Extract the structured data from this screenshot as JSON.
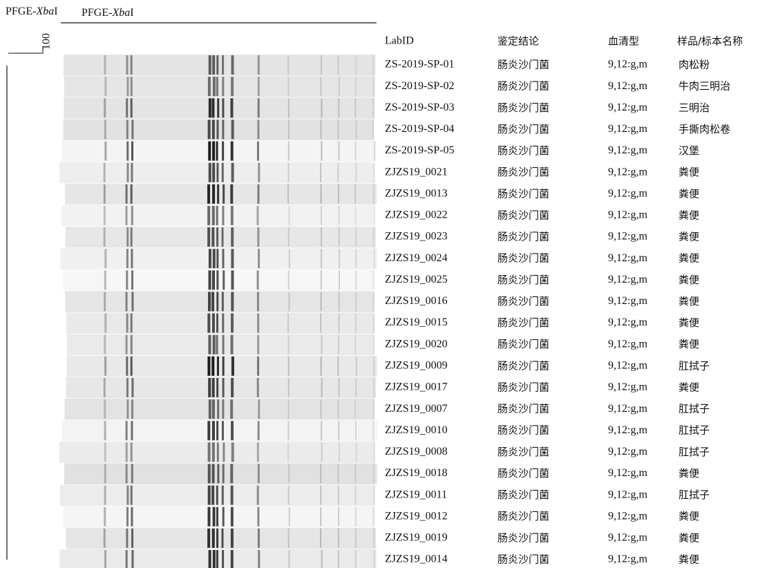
{
  "header": {
    "title_left": {
      "prefix": "PFGE-",
      "italic": "Xba",
      "suffix": "I"
    },
    "title_gel": {
      "prefix": "PFGE-",
      "italic": "Xba",
      "suffix": "I"
    },
    "scale_label": "100"
  },
  "table": {
    "columns": [
      "LabID",
      "鉴定结论",
      "血清型",
      "样品/标本名称"
    ],
    "rows": [
      [
        "ZS-2019-SP-01",
        "肠炎沙门菌",
        "9,12:g,m",
        "肉松粉"
      ],
      [
        "ZS-2019-SP-02",
        "肠炎沙门菌",
        "9,12:g,m",
        "牛肉三明治"
      ],
      [
        "ZS-2019-SP-03",
        "肠炎沙门菌",
        "9,12:g,m",
        "三明治"
      ],
      [
        "ZS-2019-SP-04",
        "肠炎沙门菌",
        "9,12:g,m",
        "手撕肉松卷"
      ],
      [
        "ZS-2019-SP-05",
        "肠炎沙门菌",
        "9,12:g,m",
        "汉堡"
      ],
      [
        "ZJZS19_0021",
        "肠炎沙门菌",
        "9,12:g,m",
        "粪便"
      ],
      [
        "ZJZS19_0013",
        "肠炎沙门菌",
        "9,12:g,m",
        "粪便"
      ],
      [
        "ZJZS19_0022",
        "肠炎沙门菌",
        "9,12:g,m",
        "粪便"
      ],
      [
        "ZJZS19_0023",
        "肠炎沙门菌",
        "9,12:g,m",
        "粪便"
      ],
      [
        "ZJZS19_0024",
        "肠炎沙门菌",
        "9,12:g,m",
        "粪便"
      ],
      [
        "ZJZS19_0025",
        "肠炎沙门菌",
        "9,12:g,m",
        "粪便"
      ],
      [
        "ZJZS19_0016",
        "肠炎沙门菌",
        "9,12:g,m",
        "粪便"
      ],
      [
        "ZJZS19_0015",
        "肠炎沙门菌",
        "9,12:g,m",
        "粪便"
      ],
      [
        "ZJZS19_0020",
        "肠炎沙门菌",
        "9,12:g,m",
        "粪便"
      ],
      [
        "ZJZS19_0009",
        "肠炎沙门菌",
        "9,12:g,m",
        "肛拭子"
      ],
      [
        "ZJZS19_0017",
        "肠炎沙门菌",
        "9,12:g,m",
        "粪便"
      ],
      [
        "ZJZS19_0007",
        "肠炎沙门菌",
        "9,12:g,m",
        "肛拭子"
      ],
      [
        "ZJZS19_0010",
        "肠炎沙门菌",
        "9,12:g,m",
        "肛拭子"
      ],
      [
        "ZJZS19_0008",
        "肠炎沙门菌",
        "9,12:g,m",
        "肛拭子"
      ],
      [
        "ZJZS19_0018",
        "肠炎沙门菌",
        "9,12:g,m",
        "粪便"
      ],
      [
        "ZJZS19_0011",
        "肠炎沙门菌",
        "9,12:g,m",
        "肛拭子"
      ],
      [
        "ZJZS19_0012",
        "肠炎沙门菌",
        "9,12:g,m",
        "粪便"
      ],
      [
        "ZJZS19_0019",
        "肠炎沙门菌",
        "9,12:g,m",
        "粪便"
      ],
      [
        "ZJZS19_0014",
        "肠炎沙门菌",
        "9,12:g,m",
        "粪便"
      ]
    ]
  }
}
